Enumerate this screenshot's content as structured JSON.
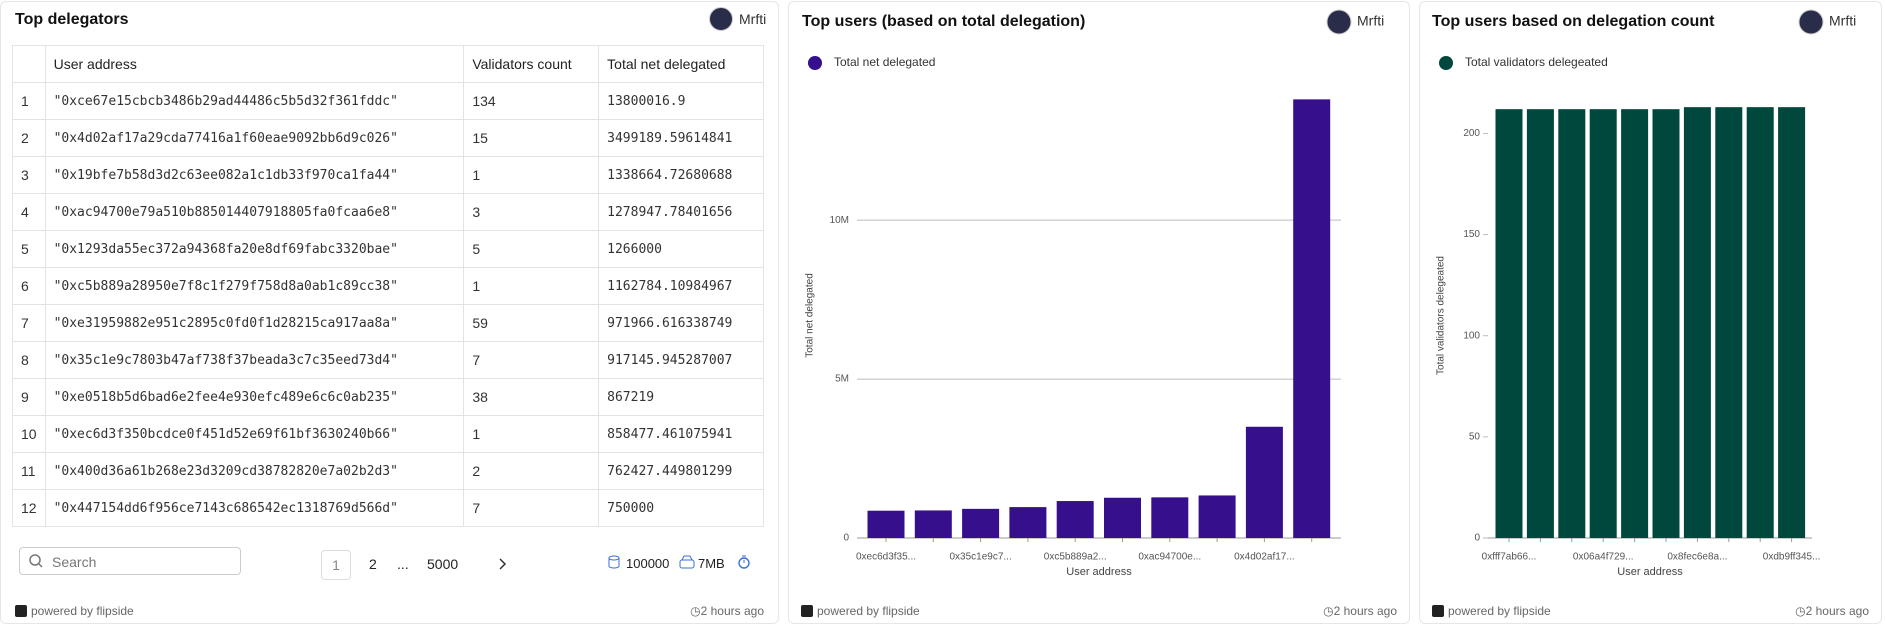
{
  "common": {
    "author": "Mrfti",
    "powered_by": "powered by flipside",
    "updated": "2 hours ago"
  },
  "table_panel": {
    "title": "Top delegators",
    "table": {
      "headers": [
        "User address",
        "Validators count",
        "Total net delegated"
      ],
      "rows": [
        [
          "1",
          "\"0xce67e15cbcb3486b29ad44486c5b5d32f361fddc\"",
          "134",
          "13800016.9"
        ],
        [
          "2",
          "\"0x4d02af17a29cda77416a1f60eae9092bb6d9c026\"",
          "15",
          "3499189.59614841"
        ],
        [
          "3",
          "\"0x19bfe7b58d3d2c63ee082a1c1db33f970ca1fa44\"",
          "1",
          "1338664.72680688"
        ],
        [
          "4",
          "\"0xac94700e79a510b885014407918805fa0fcaa6e8\"",
          "3",
          "1278947.78401656"
        ],
        [
          "5",
          "\"0x1293da55ec372a94368fa20e8df69fabc3320bae\"",
          "5",
          "1266000"
        ],
        [
          "6",
          "\"0xc5b889a28950e7f8c1f279f758d8a0ab1c89cc38\"",
          "1",
          "1162784.10984967"
        ],
        [
          "7",
          "\"0xe31959882e951c2895c0fd0f1d28215ca917aa8a\"",
          "59",
          "971966.616338749"
        ],
        [
          "8",
          "\"0x35c1e9c7803b47af738f37beada3c7c35eed73d4\"",
          "7",
          "917145.945287007"
        ],
        [
          "9",
          "\"0xe0518b5d6bad6e2fee4e930efc489e6c6c0ab235\"",
          "38",
          "867219"
        ],
        [
          "10",
          "\"0xec6d3f350bcdce0f451d52e69f61bf3630240b66\"",
          "1",
          "858477.461075941"
        ],
        [
          "11",
          "\"0x400d36a61b268e23d3209cd38782820e7a02b2d3\"",
          "2",
          "762427.449801299"
        ],
        [
          "12",
          "\"0x447154dd6f956ce7143c686542ec1318769d566d\"",
          "7",
          "750000"
        ]
      ]
    },
    "search_placeholder": "Search",
    "pages": [
      "1",
      "2",
      "...",
      "5000"
    ],
    "row_count": "100000",
    "size": "7MB"
  },
  "chart_data": [
    {
      "type": "bar",
      "title": "Top users (based on total delegation)",
      "xlabel": "User address",
      "ylabel": "Total net delegated",
      "categories": [
        "0xec6d3f35...",
        null,
        "0x35c1e9c7...",
        null,
        "0xc5b889a2...",
        null,
        "0xac94700e...",
        null,
        "0x4d02af17...",
        null
      ],
      "series": [
        {
          "name": "Total net delegated",
          "color": "#36108c",
          "values": [
            858477,
            867219,
            917145,
            971966,
            1162784,
            1266000,
            1278947,
            1338664,
            3499189,
            13800016
          ]
        }
      ],
      "ylim": [
        0,
        14000000
      ],
      "yticks": [
        0,
        {
          "value": 5000000,
          "label": "5M"
        },
        {
          "value": 10000000,
          "label": "10M"
        }
      ],
      "grid": true
    },
    {
      "type": "bar",
      "title": "Top users based on delegation count",
      "xlabel": "User address",
      "ylabel": "Total validators delegeated",
      "categories": [
        "0xfff7ab66...",
        null,
        null,
        "0x06a4f729...",
        null,
        null,
        "0x8fec6e8a...",
        null,
        null,
        "0xdb9ff345..."
      ],
      "series": [
        {
          "name": "Total validators delegeated",
          "color": "#00483d",
          "values": [
            212,
            212,
            212,
            212,
            212,
            212,
            213,
            213,
            213,
            213
          ]
        }
      ],
      "ylim": [
        0,
        220
      ],
      "yticks": [
        0,
        50,
        100,
        150,
        200
      ],
      "grid": false
    }
  ]
}
